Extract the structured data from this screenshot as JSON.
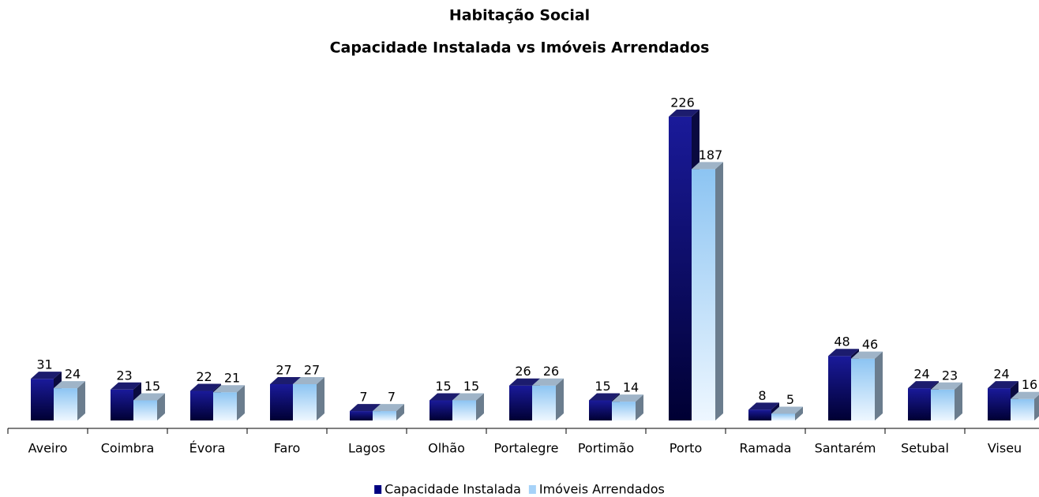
{
  "chart_data": {
    "type": "bar3d",
    "title": "Habitação Social",
    "subtitle": "Capacidade Instalada vs Imóveis Arrendados",
    "categories": [
      "Aveiro",
      "Coimbra",
      "Évora",
      "Faro",
      "Lagos",
      "Olhão",
      "Portalegre",
      "Portimão",
      "Porto",
      "Ramada",
      "Santarém",
      "Setubal",
      "Viseu"
    ],
    "series": [
      {
        "name": "Capacidade Instalada",
        "color": "#000080",
        "values": [
          31,
          23,
          22,
          27,
          7,
          15,
          26,
          15,
          226,
          8,
          48,
          24,
          24
        ]
      },
      {
        "name": "Imóveis Arrendados",
        "color": "#a6d2f8",
        "values": [
          24,
          15,
          21,
          27,
          7,
          15,
          26,
          14,
          187,
          5,
          46,
          23,
          16
        ]
      }
    ],
    "legend": "bottom"
  }
}
